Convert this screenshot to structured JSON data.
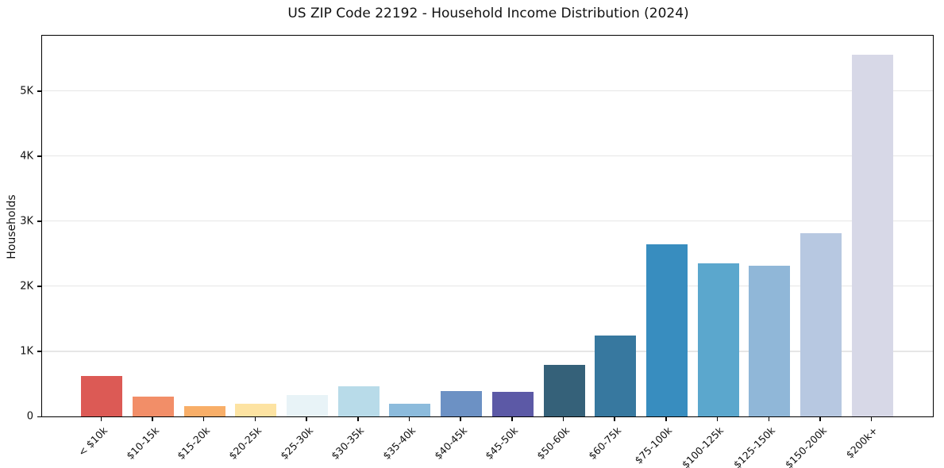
{
  "chart": {
    "title": "US ZIP Code 22192 - Household Income Distribution (2024)",
    "ylabel": "Households"
  },
  "chart_data": {
    "type": "bar",
    "title": "US ZIP Code 22192 - Household Income Distribution (2024)",
    "xlabel": "",
    "ylabel": "Households",
    "categories": [
      "< $10k",
      "$10-15k",
      "$15-20k",
      "$20-25k",
      "$25-30k",
      "$30-35k",
      "$35-40k",
      "$40-45k",
      "$45-50k",
      "$50-60k",
      "$60-75k",
      "$75-100k",
      "$100-125k",
      "$125-150k",
      "$150-200k",
      "$200k+"
    ],
    "values": [
      620,
      300,
      160,
      200,
      330,
      460,
      195,
      385,
      375,
      790,
      1245,
      2640,
      2350,
      2320,
      2810,
      5560
    ],
    "bar_colors": [
      "#dc5a55",
      "#f28e68",
      "#f8ae68",
      "#fde3a2",
      "#e8f3f7",
      "#b8dbe9",
      "#8cbbdc",
      "#6c91c4",
      "#5c59a6",
      "#356179",
      "#37789f",
      "#388dbf",
      "#5ba7cd",
      "#90b7d8",
      "#b7c8e1",
      "#d7d8e7"
    ],
    "ytick_values": [
      0,
      1000,
      2000,
      3000,
      4000,
      5000
    ],
    "ytick_labels": [
      "0",
      "1K",
      "2K",
      "3K",
      "4K",
      "5K"
    ],
    "ylim": [
      0,
      5835
    ],
    "grid": "horizontal",
    "grid_color": "#e6e6e6",
    "axis_color": "#000000",
    "legend": "none",
    "xtick_rotation": 45
  }
}
